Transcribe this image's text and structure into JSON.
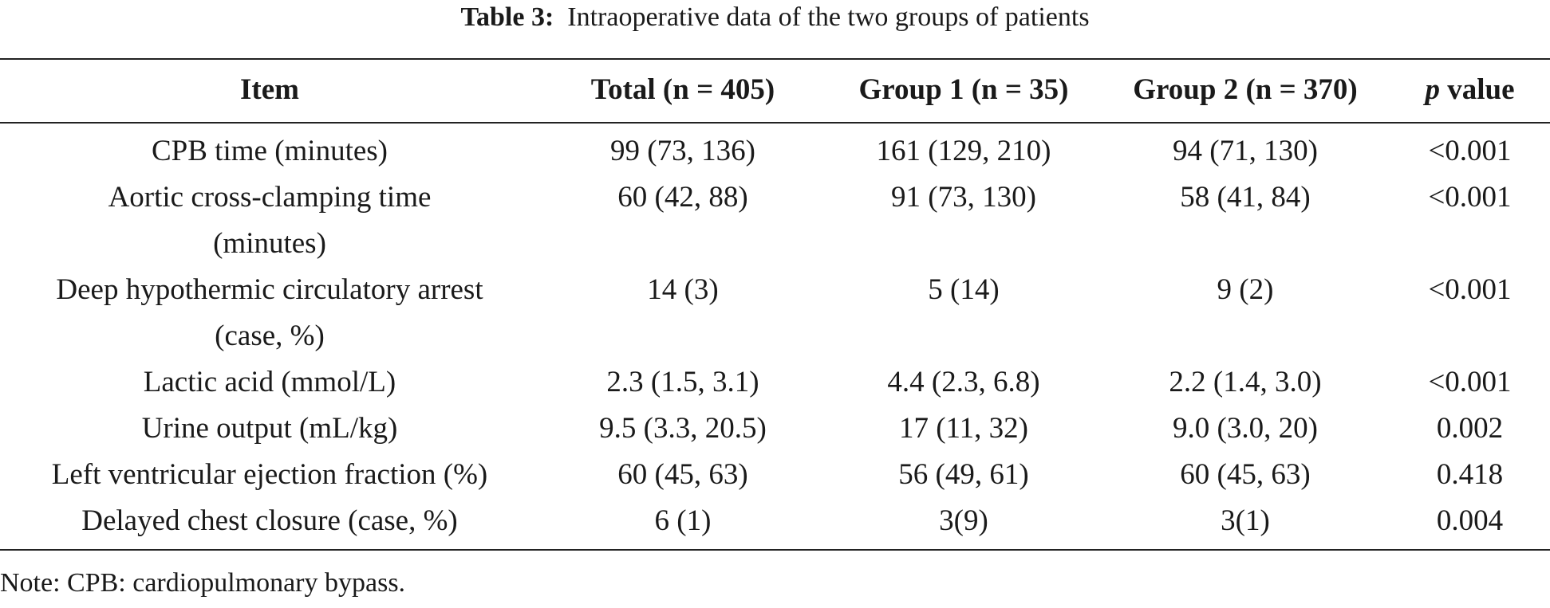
{
  "caption": {
    "label": "Table 3:",
    "title": "Intraoperative data of the two groups of patients"
  },
  "table": {
    "headers": {
      "item": "Item",
      "total": "Total (n = 405)",
      "group1": "Group 1 (n = 35)",
      "group2": "Group 2 (n = 370)",
      "p_italic": "p",
      "p_rest": " value"
    },
    "rows": [
      {
        "item": "CPB time (minutes)",
        "total": "99 (73, 136)",
        "group1": "161 (129, 210)",
        "group2": "94 (71, 130)",
        "p": "<0.001"
      },
      {
        "item_line1": "Aortic cross-clamping time",
        "item_line2": "(minutes)",
        "total": "60 (42, 88)",
        "group1": "91 (73, 130)",
        "group2": "58 (41, 84)",
        "p": "<0.001"
      },
      {
        "item_line1": "Deep hypothermic circulatory arrest",
        "item_line2": "(case, %)",
        "total": "14 (3)",
        "group1": "5 (14)",
        "group2": "9 (2)",
        "p": "<0.001"
      },
      {
        "item": "Lactic acid (mmol/L)",
        "total": "2.3 (1.5, 3.1)",
        "group1": "4.4 (2.3, 6.8)",
        "group2": "2.2 (1.4, 3.0)",
        "p": "<0.001"
      },
      {
        "item": "Urine output (mL/kg)",
        "total": "9.5 (3.3, 20.5)",
        "group1": "17 (11, 32)",
        "group2": "9.0 (3.0, 20)",
        "p": "0.002"
      },
      {
        "item": "Left ventricular ejection fraction (%)",
        "total": "60 (45, 63)",
        "group1": "56 (49, 61)",
        "group2": "60 (45, 63)",
        "p": "0.418"
      },
      {
        "item": "Delayed chest closure (case, %)",
        "total": "6 (1)",
        "group1": "3(9)",
        "group2": "3(1)",
        "p": "0.004"
      }
    ]
  },
  "note": "Note: CPB: cardiopulmonary bypass."
}
